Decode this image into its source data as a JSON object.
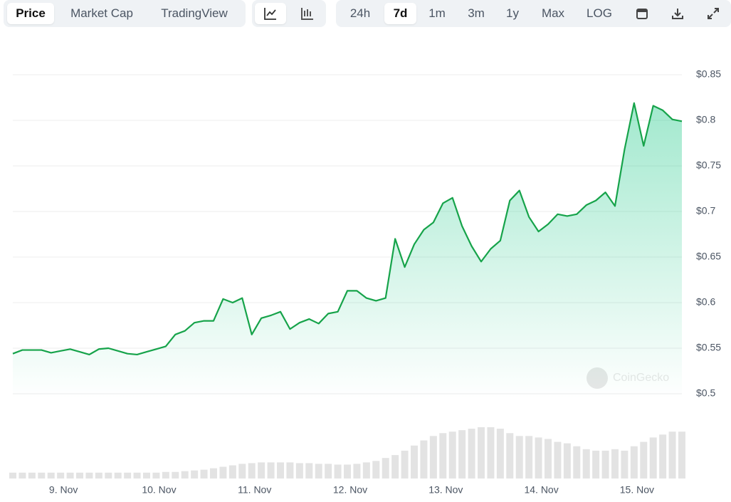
{
  "toolbar": {
    "view_tabs": [
      "Price",
      "Market Cap",
      "TradingView"
    ],
    "ranges": [
      "24h",
      "7d",
      "1m",
      "3m",
      "1y",
      "Max",
      "LOG"
    ]
  },
  "chart_data": {
    "type": "area",
    "watermark": "CoinGecko",
    "color": "#16a34a",
    "x": [
      8.47,
      8.57,
      8.67,
      8.77,
      8.87,
      8.97,
      9.07,
      9.17,
      9.27,
      9.37,
      9.47,
      9.57,
      9.67,
      9.77,
      9.87,
      9.97,
      10.07,
      10.17,
      10.27,
      10.37,
      10.47,
      10.57,
      10.67,
      10.77,
      10.87,
      10.97,
      11.07,
      11.17,
      11.27,
      11.37,
      11.47,
      11.57,
      11.67,
      11.77,
      11.87,
      11.97,
      12.07,
      12.17,
      12.27,
      12.37,
      12.47,
      12.57,
      12.67,
      12.77,
      12.87,
      12.97,
      13.07,
      13.17,
      13.27,
      13.37,
      13.47,
      13.57,
      13.67,
      13.77,
      13.87,
      13.97,
      14.07,
      14.17,
      14.27,
      14.37,
      14.47,
      14.57,
      14.67,
      14.77,
      14.87,
      14.97,
      15.07,
      15.17,
      15.27,
      15.37,
      15.47
    ],
    "values": [
      0.544,
      0.548,
      0.548,
      0.548,
      0.545,
      0.547,
      0.549,
      0.546,
      0.543,
      0.549,
      0.55,
      0.547,
      0.544,
      0.543,
      0.546,
      0.549,
      0.552,
      0.565,
      0.569,
      0.578,
      0.58,
      0.58,
      0.604,
      0.6,
      0.605,
      0.565,
      0.583,
      0.586,
      0.59,
      0.571,
      0.578,
      0.582,
      0.577,
      0.588,
      0.59,
      0.613,
      0.613,
      0.605,
      0.602,
      0.605,
      0.67,
      0.639,
      0.664,
      0.68,
      0.688,
      0.709,
      0.715,
      0.684,
      0.662,
      0.645,
      0.659,
      0.668,
      0.712,
      0.723,
      0.694,
      0.678,
      0.686,
      0.697,
      0.695,
      0.697,
      0.707,
      0.712,
      0.721,
      0.706,
      0.768,
      0.819,
      0.772,
      0.816,
      0.811,
      0.801,
      0.799
    ],
    "volume": [
      8,
      8,
      8,
      8,
      8,
      8,
      8,
      8,
      8,
      8,
      8,
      8,
      8,
      8,
      8,
      8,
      9,
      9,
      10,
      11,
      12,
      14,
      16,
      18,
      20,
      21,
      22,
      22,
      22,
      22,
      21,
      21,
      20,
      20,
      19,
      19,
      20,
      22,
      24,
      28,
      32,
      38,
      45,
      52,
      58,
      62,
      64,
      66,
      68,
      70,
      70,
      68,
      62,
      58,
      58,
      56,
      54,
      50,
      48,
      44,
      40,
      38,
      38,
      40,
      38,
      44,
      50,
      56,
      60,
      64,
      64
    ],
    "xlim": [
      8.47,
      15.47
    ],
    "xticks": [
      {
        "value": 9,
        "label": "9. Nov"
      },
      {
        "value": 10,
        "label": "10. Nov"
      },
      {
        "value": 11,
        "label": "11. Nov"
      },
      {
        "value": 12,
        "label": "12. Nov"
      },
      {
        "value": 13,
        "label": "13. Nov"
      },
      {
        "value": 14,
        "label": "14. Nov"
      },
      {
        "value": 15,
        "label": "15. Nov"
      }
    ],
    "ylim": [
      0.5,
      0.85
    ],
    "yticks": [
      {
        "value": 0.5,
        "label": "$0.5"
      },
      {
        "value": 0.55,
        "label": "$0.55"
      },
      {
        "value": 0.6,
        "label": "$0.6"
      },
      {
        "value": 0.65,
        "label": "$0.65"
      },
      {
        "value": 0.7,
        "label": "$0.7"
      },
      {
        "value": 0.75,
        "label": "$0.75"
      },
      {
        "value": 0.8,
        "label": "$0.8"
      },
      {
        "value": 0.85,
        "label": "$0.85"
      }
    ],
    "grid": true
  }
}
